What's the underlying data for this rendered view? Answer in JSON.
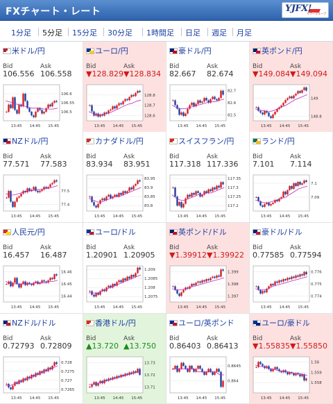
{
  "header": {
    "title": "FXチャート・レート",
    "logo_text": "YJFX!",
    "logo_sub": "ヤフーグループ"
  },
  "tabs": [
    {
      "label": "1分足"
    },
    {
      "label": "5分足"
    },
    {
      "label": "15分足"
    },
    {
      "label": "30分足"
    },
    {
      "label": "1時間足"
    },
    {
      "label": "日足"
    },
    {
      "label": "週足"
    },
    {
      "label": "月足"
    }
  ],
  "active_tab": "5分足",
  "labels": {
    "bid": "Bid",
    "ask": "Ask"
  },
  "colors": {
    "up_bg": "#e2f5dc",
    "down_bg": "#fde1e1",
    "up_text": "#1e8a1e",
    "down_text": "#d11a1a",
    "candle_up": "#d22020",
    "candle_down": "#1f3f9e",
    "ma": "#c02ac0"
  },
  "pairs": [
    {
      "name": "米ドル/円",
      "bid": "106.556",
      "ask": "106.558",
      "trend": "flat",
      "flag": [
        "#b22234",
        "#ffffff"
      ],
      "chart_data": {
        "type": "candlestick",
        "xticks": [
          "13:45",
          "14:45",
          "15:45"
        ],
        "yticks": [
          "106.6",
          "106.55",
          "106.5"
        ],
        "ylim": [
          106.45,
          106.65
        ],
        "series": [
          106.5,
          106.54,
          106.52,
          106.58,
          106.51,
          106.49,
          106.54,
          106.53,
          106.6,
          106.56,
          106.52,
          106.5,
          106.48,
          106.47,
          106.5,
          106.52,
          106.51,
          106.49,
          106.5,
          106.52,
          106.54,
          106.53,
          106.55,
          106.56,
          106.555
        ],
        "ma": [
          106.56,
          106.555,
          106.545,
          106.54,
          106.535,
          106.525,
          106.52,
          106.52,
          106.52,
          106.515,
          106.515,
          106.515,
          106.52
        ]
      }
    },
    {
      "name": "ユーロ/円",
      "bid": "▼128.829",
      "ask": "▼128.834",
      "trend": "down",
      "flag": [
        "#003399",
        "#ffcc00"
      ],
      "chart_data": {
        "type": "candlestick",
        "xticks": [
          "13:45",
          "14:45",
          "15:45"
        ],
        "yticks": [
          "128.8",
          "128.7",
          "128.6"
        ],
        "ylim": [
          128.55,
          128.9
        ],
        "series": [
          128.7,
          128.64,
          128.6,
          128.62,
          128.59,
          128.61,
          128.6,
          128.63,
          128.62,
          128.65,
          128.66,
          128.69,
          128.67,
          128.7,
          128.72,
          128.71,
          128.74,
          128.76,
          128.75,
          128.78,
          128.8,
          128.79,
          128.82,
          128.84,
          128.829
        ],
        "ma": [
          128.64,
          128.62,
          128.61,
          128.61,
          128.62,
          128.63,
          128.65,
          128.67,
          128.69,
          128.71,
          128.72,
          128.74,
          128.75
        ]
      }
    },
    {
      "name": "豪ドル/円",
      "bid": "82.667",
      "ask": "82.674",
      "trend": "flat",
      "flag": [
        "#00247d",
        "#cc0000"
      ],
      "chart_data": {
        "type": "candlestick",
        "xticks": [
          "13:45",
          "14:45",
          "15:45"
        ],
        "yticks": [
          "82.7",
          "82.6",
          "82.5"
        ],
        "ylim": [
          82.45,
          82.75
        ],
        "series": [
          82.62,
          82.58,
          82.55,
          82.5,
          82.52,
          82.49,
          82.51,
          82.55,
          82.58,
          82.6,
          82.57,
          82.59,
          82.62,
          82.6,
          82.61,
          82.64,
          82.62,
          82.6,
          82.63,
          82.65,
          82.63,
          82.62,
          82.64,
          82.7,
          82.667
        ],
        "ma": [
          82.58,
          82.56,
          82.55,
          82.55,
          82.56,
          82.57,
          82.58,
          82.59,
          82.6,
          82.61,
          82.61,
          82.62,
          82.63
        ]
      }
    },
    {
      "name": "英ポンド/円",
      "bid": "▼149.084",
      "ask": "▼149.094",
      "trend": "down",
      "flag": [
        "#012169",
        "#c8102e"
      ],
      "chart_data": {
        "type": "candlestick",
        "xticks": [
          "13:45",
          "14:45",
          "15:45"
        ],
        "yticks": [
          "149",
          "148.8"
        ],
        "ylim": [
          148.75,
          149.15
        ],
        "series": [
          148.9,
          148.86,
          148.84,
          148.82,
          148.86,
          148.84,
          148.8,
          148.78,
          148.82,
          148.85,
          148.88,
          148.9,
          148.92,
          148.95,
          148.98,
          149.0,
          149.02,
          149.0,
          149.03,
          149.05,
          149.08,
          149.06,
          149.09,
          149.12,
          149.084
        ],
        "ma": [
          148.88,
          148.87,
          148.86,
          148.85,
          148.86,
          148.88,
          148.9,
          148.92,
          148.95,
          148.98,
          149.0,
          149.02,
          149.04
        ]
      }
    },
    {
      "name": "NZドル/円",
      "bid": "77.571",
      "ask": "77.583",
      "trend": "flat",
      "flag": [
        "#00247d",
        "#cc142b"
      ],
      "chart_data": {
        "type": "candlestick",
        "xticks": [
          "13:45",
          "14:45",
          "15:45"
        ],
        "yticks": [
          "77.5",
          "77.4"
        ],
        "ylim": [
          77.35,
          77.62
        ],
        "series": [
          77.45,
          77.5,
          77.42,
          77.38,
          77.42,
          77.45,
          77.46,
          77.48,
          77.5,
          77.49,
          77.52,
          77.5,
          77.51,
          77.53,
          77.5,
          77.49,
          77.5,
          77.51,
          77.53,
          77.52,
          77.53,
          77.55,
          77.56,
          77.58,
          77.571
        ],
        "ma": [
          77.48,
          77.47,
          77.47,
          77.48,
          77.49,
          77.5,
          77.5,
          77.51,
          77.51,
          77.52,
          77.52,
          77.53,
          77.54
        ]
      }
    },
    {
      "name": "カナダドル/円",
      "bid": "83.934",
      "ask": "83.951",
      "trend": "flat",
      "flag": [
        "#d52b1e",
        "#ffffff"
      ],
      "chart_data": {
        "type": "candlestick",
        "xticks": [
          "13:45",
          "14:45",
          "15:45"
        ],
        "yticks": [
          "83.95",
          "83.9",
          "83.85",
          "83.8"
        ],
        "ylim": [
          83.77,
          83.97
        ],
        "series": [
          83.85,
          83.82,
          83.8,
          83.79,
          83.81,
          83.83,
          83.84,
          83.83,
          83.85,
          83.86,
          83.84,
          83.85,
          83.86,
          83.85,
          83.87,
          83.86,
          83.88,
          83.87,
          83.88,
          83.9,
          83.89,
          83.91,
          83.92,
          83.94,
          83.934
        ],
        "ma": [
          83.84,
          83.83,
          83.82,
          83.82,
          83.83,
          83.84,
          83.85,
          83.85,
          83.86,
          83.87,
          83.88,
          83.89,
          83.9
        ]
      }
    },
    {
      "name": "スイスフラン/円",
      "bid": "117.318",
      "ask": "117.336",
      "trend": "flat",
      "flag": [
        "#d52b1e",
        "#ffffff"
      ],
      "chart_data": {
        "type": "candlestick",
        "xticks": [
          "13:45",
          "14:45",
          "15:45"
        ],
        "yticks": [
          "117.35",
          "117.3",
          "117.25",
          "117.2"
        ],
        "ylim": [
          117.17,
          117.37
        ],
        "series": [
          117.3,
          117.25,
          117.2,
          117.22,
          117.19,
          117.21,
          117.24,
          117.26,
          117.25,
          117.27,
          117.26,
          117.28,
          117.27,
          117.25,
          117.26,
          117.28,
          117.27,
          117.29,
          117.28,
          117.3,
          117.29,
          117.31,
          117.3,
          117.33,
          117.318
        ],
        "ma": [
          117.26,
          117.24,
          117.23,
          117.23,
          117.24,
          117.25,
          117.26,
          117.26,
          117.27,
          117.27,
          117.28,
          117.29,
          117.3
        ]
      }
    },
    {
      "name": "ランド/円",
      "bid": "7.101",
      "ask": "7.114",
      "trend": "flat",
      "flag": [
        "#007749",
        "#ffb81c"
      ],
      "chart_data": {
        "type": "candlestick",
        "xticks": [
          "13:45",
          "14:45",
          "15:45"
        ],
        "yticks": [
          "7.1",
          "7.09"
        ],
        "ylim": [
          7.08,
          7.106
        ],
        "series": [
          7.09,
          7.087,
          7.084,
          7.083,
          7.085,
          7.086,
          7.084,
          7.085,
          7.086,
          7.088,
          7.087,
          7.089,
          7.09,
          7.094,
          7.092,
          7.095,
          7.098,
          7.096,
          7.1,
          7.098,
          7.101,
          7.099,
          7.1,
          7.102,
          7.101
        ],
        "ma": [
          7.088,
          7.087,
          7.086,
          7.086,
          7.087,
          7.088,
          7.089,
          7.09,
          7.092,
          7.094,
          7.096,
          7.097,
          7.098
        ]
      }
    },
    {
      "name": "人民元/円",
      "bid": "16.457",
      "ask": "16.487",
      "trend": "flat",
      "flag": [
        "#de2910",
        "#ffde00"
      ],
      "chart_data": {
        "type": "candlestick",
        "xticks": [
          "13:45",
          "14:45",
          "15:45"
        ],
        "yticks": [
          "16.46",
          "16.45",
          "16.44"
        ],
        "ylim": [
          16.435,
          16.465
        ],
        "series": [
          16.45,
          16.452,
          16.448,
          16.451,
          16.455,
          16.45,
          16.447,
          16.45,
          16.452,
          16.449,
          16.451,
          16.45,
          16.449,
          16.451,
          16.452,
          16.45,
          16.451,
          16.453,
          16.452,
          16.451,
          16.453,
          16.455,
          16.454,
          16.458,
          16.457
        ],
        "ma": [
          16.452,
          16.451,
          16.45,
          16.45,
          16.45,
          16.45,
          16.45,
          16.451,
          16.451,
          16.451,
          16.452,
          16.452,
          16.453
        ]
      }
    },
    {
      "name": "ユーロ/ドル",
      "bid": "1.20901",
      "ask": "1.20905",
      "trend": "flat",
      "flag": [
        "#003399",
        "#b22234"
      ],
      "chart_data": {
        "type": "candlestick",
        "xticks": [
          "13:45",
          "14:45",
          "15:45"
        ],
        "yticks": [
          "1.209",
          "1.2085",
          "1.208",
          "1.2075"
        ],
        "ylim": [
          1.2072,
          1.2092
        ],
        "series": [
          1.2078,
          1.2076,
          1.2075,
          1.2077,
          1.2076,
          1.2078,
          1.2079,
          1.2078,
          1.208,
          1.2081,
          1.208,
          1.2082,
          1.2081,
          1.2083,
          1.2084,
          1.2083,
          1.2085,
          1.2084,
          1.2086,
          1.2085,
          1.2087,
          1.2086,
          1.2088,
          1.2091,
          1.209
        ],
        "ma": [
          1.2077,
          1.2077,
          1.2077,
          1.2078,
          1.2079,
          1.208,
          1.2081,
          1.2082,
          1.2083,
          1.2084,
          1.2085,
          1.2086,
          1.2087
        ]
      }
    },
    {
      "name": "英ポンド/ドル",
      "bid": "▼1.39912",
      "ask": "▼1.39922",
      "trend": "down",
      "flag": [
        "#012169",
        "#c8102e"
      ],
      "chart_data": {
        "type": "candlestick",
        "xticks": [
          "13:45",
          "14:45",
          "15:45"
        ],
        "yticks": [
          "1.399",
          "1.398",
          "1.397"
        ],
        "ylim": [
          1.3965,
          1.3995
        ],
        "series": [
          1.3978,
          1.3975,
          1.3972,
          1.397,
          1.3973,
          1.3975,
          1.3977,
          1.3976,
          1.3978,
          1.398,
          1.3979,
          1.3981,
          1.3982,
          1.3981,
          1.3983,
          1.3982,
          1.3984,
          1.3983,
          1.3985,
          1.3986,
          1.3985,
          1.3987,
          1.3986,
          1.3992,
          1.3991
        ],
        "ma": [
          1.3976,
          1.3975,
          1.3975,
          1.3976,
          1.3977,
          1.3978,
          1.3979,
          1.398,
          1.3981,
          1.3982,
          1.3983,
          1.3984,
          1.3985
        ]
      }
    },
    {
      "name": "豪ドル/ドル",
      "bid": "0.77585",
      "ask": "0.77594",
      "trend": "flat",
      "flag": [
        "#00247d",
        "#b22234"
      ],
      "chart_data": {
        "type": "candlestick",
        "xticks": [
          "13:45",
          "14:45",
          "15:45"
        ],
        "yticks": [
          "0.776",
          "0.775",
          "0.774"
        ],
        "ylim": [
          0.7735,
          0.7765
        ],
        "series": [
          0.7748,
          0.7745,
          0.7742,
          0.7744,
          0.7743,
          0.7746,
          0.7748,
          0.775,
          0.7749,
          0.7752,
          0.7751,
          0.7753,
          0.7752,
          0.7754,
          0.7753,
          0.7755,
          0.7754,
          0.7756,
          0.7755,
          0.7757,
          0.7756,
          0.7758,
          0.7757,
          0.776,
          0.7758
        ],
        "ma": [
          0.7746,
          0.7745,
          0.7745,
          0.7746,
          0.7748,
          0.7749,
          0.775,
          0.7751,
          0.7752,
          0.7753,
          0.7754,
          0.7755,
          0.7756
        ]
      }
    },
    {
      "name": "NZドル/ドル",
      "bid": "0.72793",
      "ask": "0.72809",
      "trend": "flat",
      "flag": [
        "#00247d",
        "#b22234"
      ],
      "chart_data": {
        "type": "candlestick",
        "xticks": [
          "13:45",
          "14:45",
          "15:45"
        ],
        "yticks": [
          "0.728",
          "0.7275",
          "0.727",
          "0.7265"
        ],
        "ylim": [
          0.7263,
          0.7283
        ],
        "series": [
          0.7268,
          0.7266,
          0.7265,
          0.7267,
          0.7269,
          0.7268,
          0.727,
          0.7269,
          0.7271,
          0.727,
          0.7272,
          0.7271,
          0.7273,
          0.7272,
          0.7274,
          0.7273,
          0.7275,
          0.7274,
          0.7276,
          0.7275,
          0.7277,
          0.7276,
          0.7278,
          0.728,
          0.7279
        ],
        "ma": [
          0.7267,
          0.7267,
          0.7268,
          0.7269,
          0.727,
          0.7271,
          0.7272,
          0.7273,
          0.7274,
          0.7275,
          0.7276,
          0.7277,
          0.7278
        ]
      }
    },
    {
      "name": "香港ドル/円",
      "bid": "▲13.720",
      "ask": "▲13.750",
      "trend": "up",
      "flag": [
        "#de2910",
        "#ffffff"
      ],
      "chart_data": {
        "type": "candlestick",
        "xticks": [
          "13:45",
          "14:45",
          "15:45"
        ],
        "yticks": [
          "13.73",
          "13.72",
          "13.71"
        ],
        "ylim": [
          13.705,
          13.735
        ],
        "series": [
          13.71,
          13.712,
          13.714,
          13.711,
          13.713,
          13.715,
          13.713,
          13.716,
          13.715,
          13.717,
          13.716,
          13.718,
          13.717,
          13.719,
          13.718,
          13.72,
          13.719,
          13.721,
          13.72,
          13.722,
          13.721,
          13.723,
          13.722,
          13.725,
          13.72
        ],
        "ma": [
          13.712,
          13.712,
          13.713,
          13.714,
          13.715,
          13.716,
          13.717,
          13.718,
          13.719,
          13.72,
          13.721,
          13.722,
          13.722
        ]
      }
    },
    {
      "name": "ユーロ/英ポンド",
      "bid": "0.86403",
      "ask": "0.86413",
      "trend": "flat",
      "flag": [
        "#003399",
        "#c8102e"
      ],
      "chart_data": {
        "type": "candlestick",
        "xticks": [
          "13:45",
          "14:45",
          "15:45"
        ],
        "yticks": [
          "0.8645",
          "0.864"
        ],
        "ylim": [
          0.8636,
          0.8648
        ],
        "series": [
          0.8644,
          0.8645,
          0.8643,
          0.8644,
          0.8646,
          0.8645,
          0.8644,
          0.8643,
          0.8645,
          0.8644,
          0.8643,
          0.8644,
          0.8645,
          0.8644,
          0.8643,
          0.8642,
          0.8643,
          0.8644,
          0.8643,
          0.8642,
          0.8643,
          0.8644,
          0.8643,
          0.8638,
          0.864
        ],
        "ma": [
          0.8644,
          0.8644,
          0.8644,
          0.8644,
          0.8644,
          0.8644,
          0.8643,
          0.8643,
          0.8643,
          0.8643,
          0.8643,
          0.8642,
          0.8642
        ]
      }
    },
    {
      "name": "ユーロ/豪ドル",
      "bid": "▼1.55835",
      "ask": "▼1.55850",
      "trend": "down",
      "flag": [
        "#003399",
        "#00247d"
      ],
      "chart_data": {
        "type": "candlestick",
        "xticks": [
          "13:45",
          "14:45",
          "15:45"
        ],
        "yticks": [
          "1.56",
          "1.559",
          "1.558"
        ],
        "ylim": [
          1.557,
          1.5605
        ],
        "series": [
          1.5595,
          1.56,
          1.5598,
          1.5596,
          1.5594,
          1.5596,
          1.5593,
          1.5591,
          1.5593,
          1.5595,
          1.5593,
          1.5591,
          1.559,
          1.5592,
          1.559,
          1.5588,
          1.559,
          1.5589,
          1.5587,
          1.5589,
          1.5588,
          1.5586,
          1.5588,
          1.5582,
          1.5584
        ],
        "ma": [
          1.5597,
          1.5596,
          1.5595,
          1.5594,
          1.5593,
          1.5592,
          1.5591,
          1.5591,
          1.559,
          1.5589,
          1.5589,
          1.5588,
          1.5587
        ]
      }
    }
  ]
}
